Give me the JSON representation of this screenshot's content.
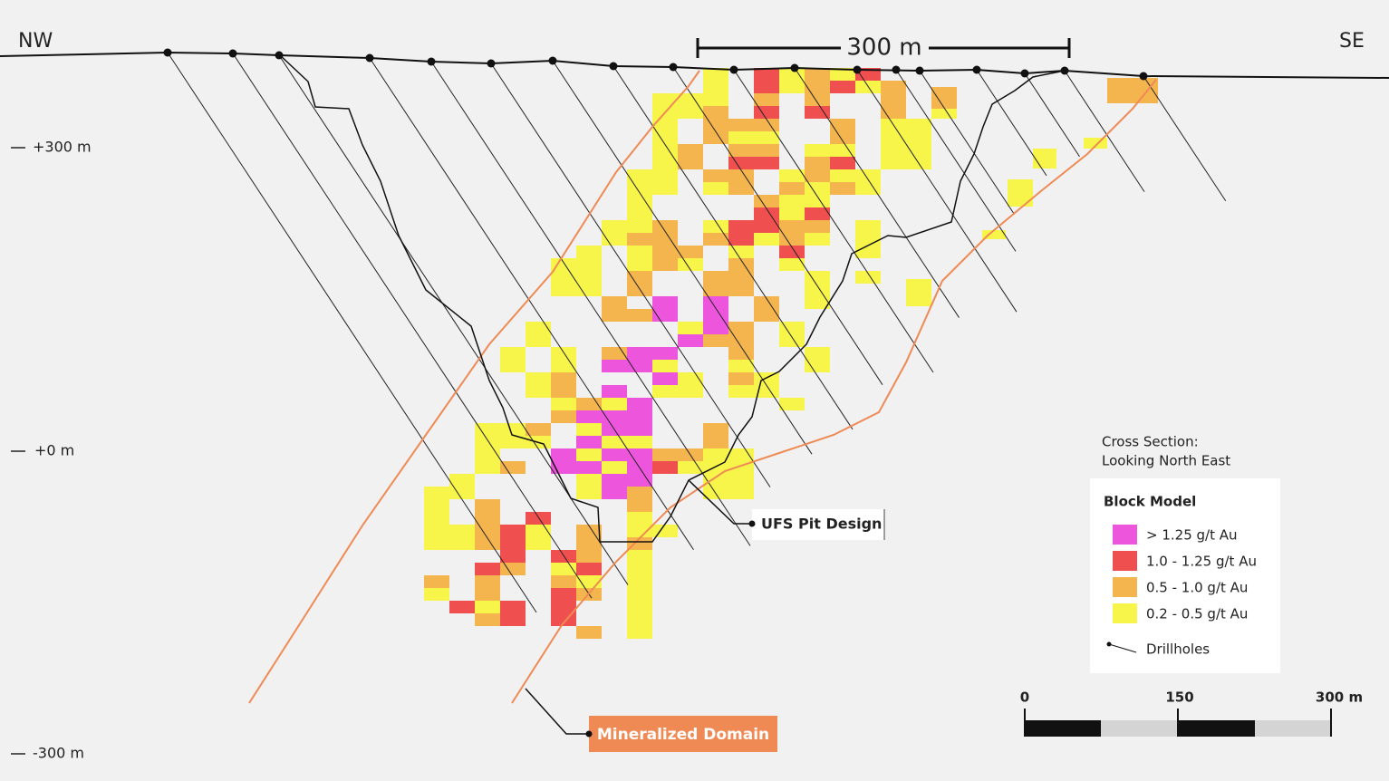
{
  "header": {
    "left": "NW",
    "right": "SE",
    "scale": "300 m"
  },
  "elevations": [
    "+300 m",
    "+0 m",
    "-300 m"
  ],
  "callouts": {
    "pit": "UFS Pit Design",
    "domain": "Mineralized Domain"
  },
  "caption": [
    "Cross Section:",
    "Looking North East"
  ],
  "legend": {
    "title": "Block Model",
    "items": [
      {
        "label": "> 1.25 g/t Au",
        "color": "#ee55dd"
      },
      {
        "label": "1.0 -  1.25 g/t Au",
        "color": "#f04f4f"
      },
      {
        "label": "0.5 - 1.0 g/t Au",
        "color": "#f5b54e"
      },
      {
        "label": "0.2 - 0.5 g/t Au",
        "color": "#f7f54a"
      }
    ],
    "drillholes": "Drillholes"
  },
  "scale_bar": [
    "0",
    "150",
    "300 m"
  ]
}
